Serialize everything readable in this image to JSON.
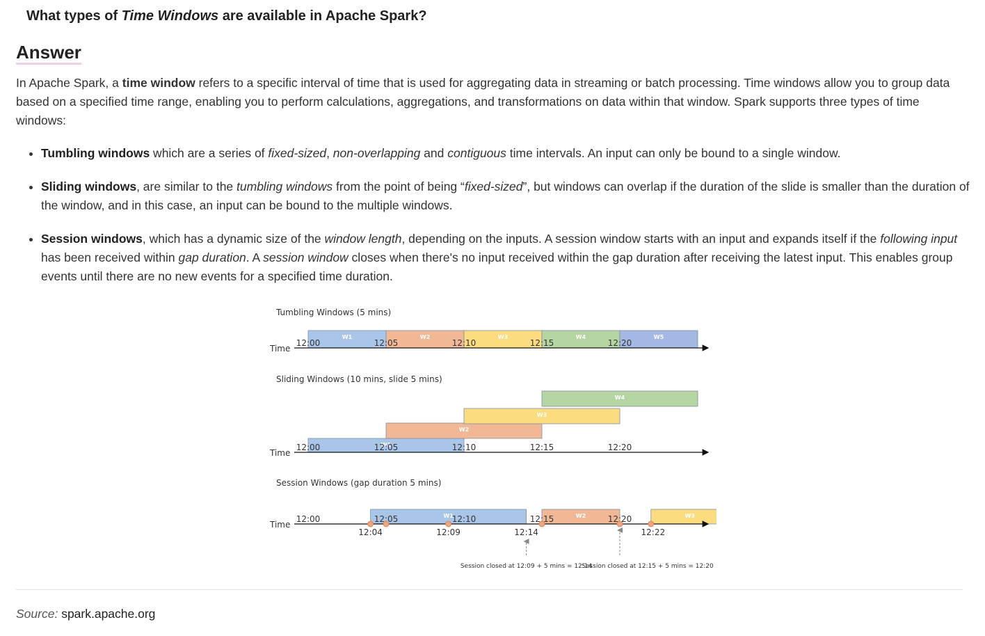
{
  "question": {
    "prefix": "What types of ",
    "emphasis": "Time Windows",
    "suffix": " are available in Apache Spark?"
  },
  "answer_heading": "Answer",
  "intro": {
    "part1": "In Apache Spark, a ",
    "bold": "time window",
    "part2": " refers to a specific interval of time that is used for aggregating data in streaming or batch processing. Time windows allow you to group data based on a specified time range, enabling you to perform calculations, aggregations, and transformations on data within that window. Spark supports three types of time windows:"
  },
  "bullets": {
    "tumbling": {
      "title": "Tumbling windows",
      "t1": " which are a series of ",
      "i1": "fixed-sized",
      "t2": ", ",
      "i2": "non-overlapping",
      "t3": " and ",
      "i3": "contiguous",
      "t4": " time intervals. An input can only be bound to a single window."
    },
    "sliding": {
      "title": "Sliding windows",
      "t1": ", are similar to the ",
      "i1": "tumbling windows",
      "t2": " from the point of being “",
      "i2": "fixed-sized",
      "t3": "”, but windows can overlap if the duration of the slide is smaller than the duration of the window, and in this case, an input can be bound to the multiple windows."
    },
    "session": {
      "title": "Session windows",
      "t1": ", which has a dynamic size of the ",
      "i1": "window length",
      "t2": ", depending on the inputs. A session window starts with an input and expands itself if the ",
      "i2": "following input",
      "t3": " has been received within ",
      "i3": "gap duration",
      "t4": ". A ",
      "i4": "session window",
      "t5": " closes when there's no input received within the gap duration after receiving the latest input. This enables group events until there are no new events for a specified time duration."
    }
  },
  "figure": {
    "axis_label": "Time",
    "tumbling": {
      "title": "Tumbling Windows (5 mins)",
      "ticks": [
        "12:00",
        "12:05",
        "12:10",
        "12:15",
        "12:20"
      ],
      "windows": [
        {
          "label": "W1",
          "start": 0,
          "end": 5,
          "color": "#a9c6e8"
        },
        {
          "label": "W2",
          "start": 5,
          "end": 10,
          "color": "#f2b895"
        },
        {
          "label": "W3",
          "start": 10,
          "end": 15,
          "color": "#fbdc7e"
        },
        {
          "label": "W4",
          "start": 15,
          "end": 20,
          "color": "#b5d5a2"
        },
        {
          "label": "W5",
          "start": 20,
          "end": 25,
          "color": "#a3b8e3"
        }
      ]
    },
    "sliding": {
      "title": "Sliding Windows (10 mins, slide 5 mins)",
      "ticks": [
        "12:00",
        "12:05",
        "12:10",
        "12:15",
        "12:20"
      ],
      "windows": [
        {
          "label": "W1",
          "start": 0,
          "end": 10,
          "color": "#a9c6e8"
        },
        {
          "label": "W2",
          "start": 5,
          "end": 15,
          "color": "#f2b895"
        },
        {
          "label": "W3",
          "start": 10,
          "end": 20,
          "color": "#fbdc7e"
        },
        {
          "label": "W4",
          "start": 15,
          "end": 25,
          "color": "#b5d5a2"
        }
      ]
    },
    "session": {
      "title": "Session Windows (gap duration 5 mins)",
      "ticks": [
        "12:00",
        "12:05",
        "12:10",
        "12:15",
        "12:20"
      ],
      "windows": [
        {
          "label": "W1",
          "start": 4,
          "end": 14,
          "color": "#a9c6e8"
        },
        {
          "label": "W2",
          "start": 15,
          "end": 20,
          "color": "#f2b895"
        },
        {
          "label": "W3",
          "start": 22,
          "end": 27,
          "color": "#fbdc7e"
        }
      ],
      "events": [
        {
          "minute": 4,
          "label": "12:04"
        },
        {
          "minute": 5,
          "label": ""
        },
        {
          "minute": 9,
          "label": "12:09"
        },
        {
          "minute": 15,
          "label": ""
        },
        {
          "minute": 20,
          "label": ""
        },
        {
          "minute": 22,
          "label": "12:22"
        }
      ],
      "close_markers": [
        {
          "minute": 14,
          "label": "12:14",
          "note": "Session closed at 12:09 + 5 mins = 12:14"
        },
        {
          "minute": 20,
          "label": "",
          "note": "Session closed at 12:15 + 5 mins = 12:20"
        }
      ]
    }
  },
  "source": {
    "label": "Source:",
    "value": "spark.apache.org"
  }
}
